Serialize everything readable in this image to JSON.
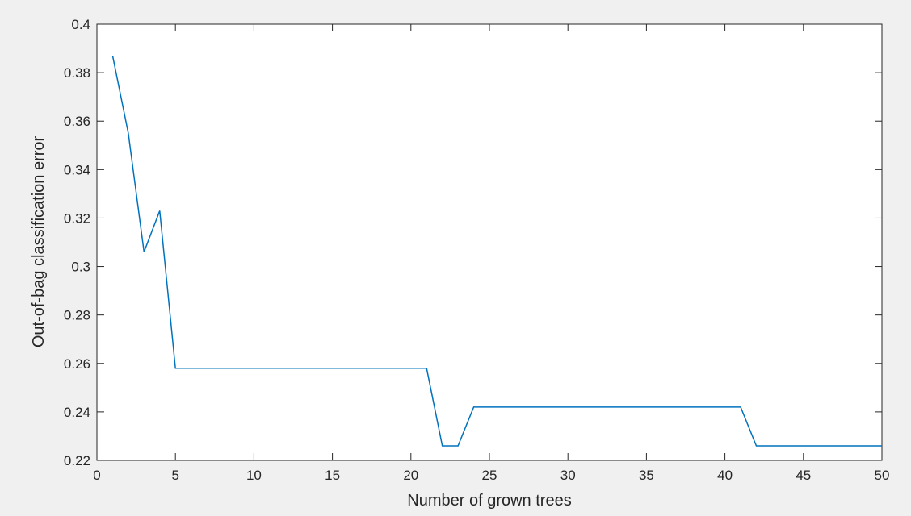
{
  "chart_data": {
    "type": "line",
    "title": "",
    "xlabel": "Number of grown trees",
    "ylabel": "Out-of-bag classification error",
    "xlim": [
      0,
      50
    ],
    "ylim": [
      0.22,
      0.4
    ],
    "xticks": [
      0,
      5,
      10,
      15,
      20,
      25,
      30,
      35,
      40,
      45,
      50
    ],
    "xtick_labels": [
      "0",
      "5",
      "10",
      "15",
      "20",
      "25",
      "30",
      "35",
      "40",
      "45",
      "50"
    ],
    "yticks": [
      0.22,
      0.24,
      0.26,
      0.28,
      0.3,
      0.32,
      0.34,
      0.36,
      0.38,
      0.4
    ],
    "ytick_labels": [
      "0.22",
      "0.24",
      "0.26",
      "0.28",
      "0.3",
      "0.32",
      "0.34",
      "0.36",
      "0.38",
      "0.4"
    ],
    "grid": false,
    "legend": "none",
    "series": [
      {
        "color": "#0072bd",
        "x": [
          1,
          2,
          3,
          4,
          5,
          6,
          7,
          8,
          9,
          10,
          11,
          12,
          13,
          14,
          15,
          16,
          17,
          18,
          19,
          20,
          21,
          22,
          23,
          24,
          25,
          26,
          27,
          28,
          29,
          30,
          31,
          32,
          33,
          34,
          35,
          36,
          37,
          38,
          39,
          40,
          41,
          42,
          43,
          44,
          45,
          46,
          47,
          48,
          49,
          50
        ],
        "y": [
          0.387,
          0.355,
          0.306,
          0.323,
          0.258,
          0.258,
          0.258,
          0.258,
          0.258,
          0.258,
          0.258,
          0.258,
          0.258,
          0.258,
          0.258,
          0.258,
          0.258,
          0.258,
          0.258,
          0.258,
          0.258,
          0.226,
          0.226,
          0.242,
          0.242,
          0.242,
          0.242,
          0.242,
          0.242,
          0.242,
          0.242,
          0.242,
          0.242,
          0.242,
          0.242,
          0.242,
          0.242,
          0.242,
          0.242,
          0.242,
          0.242,
          0.226,
          0.226,
          0.226,
          0.226,
          0.226,
          0.226,
          0.226,
          0.226,
          0.226
        ]
      }
    ]
  }
}
